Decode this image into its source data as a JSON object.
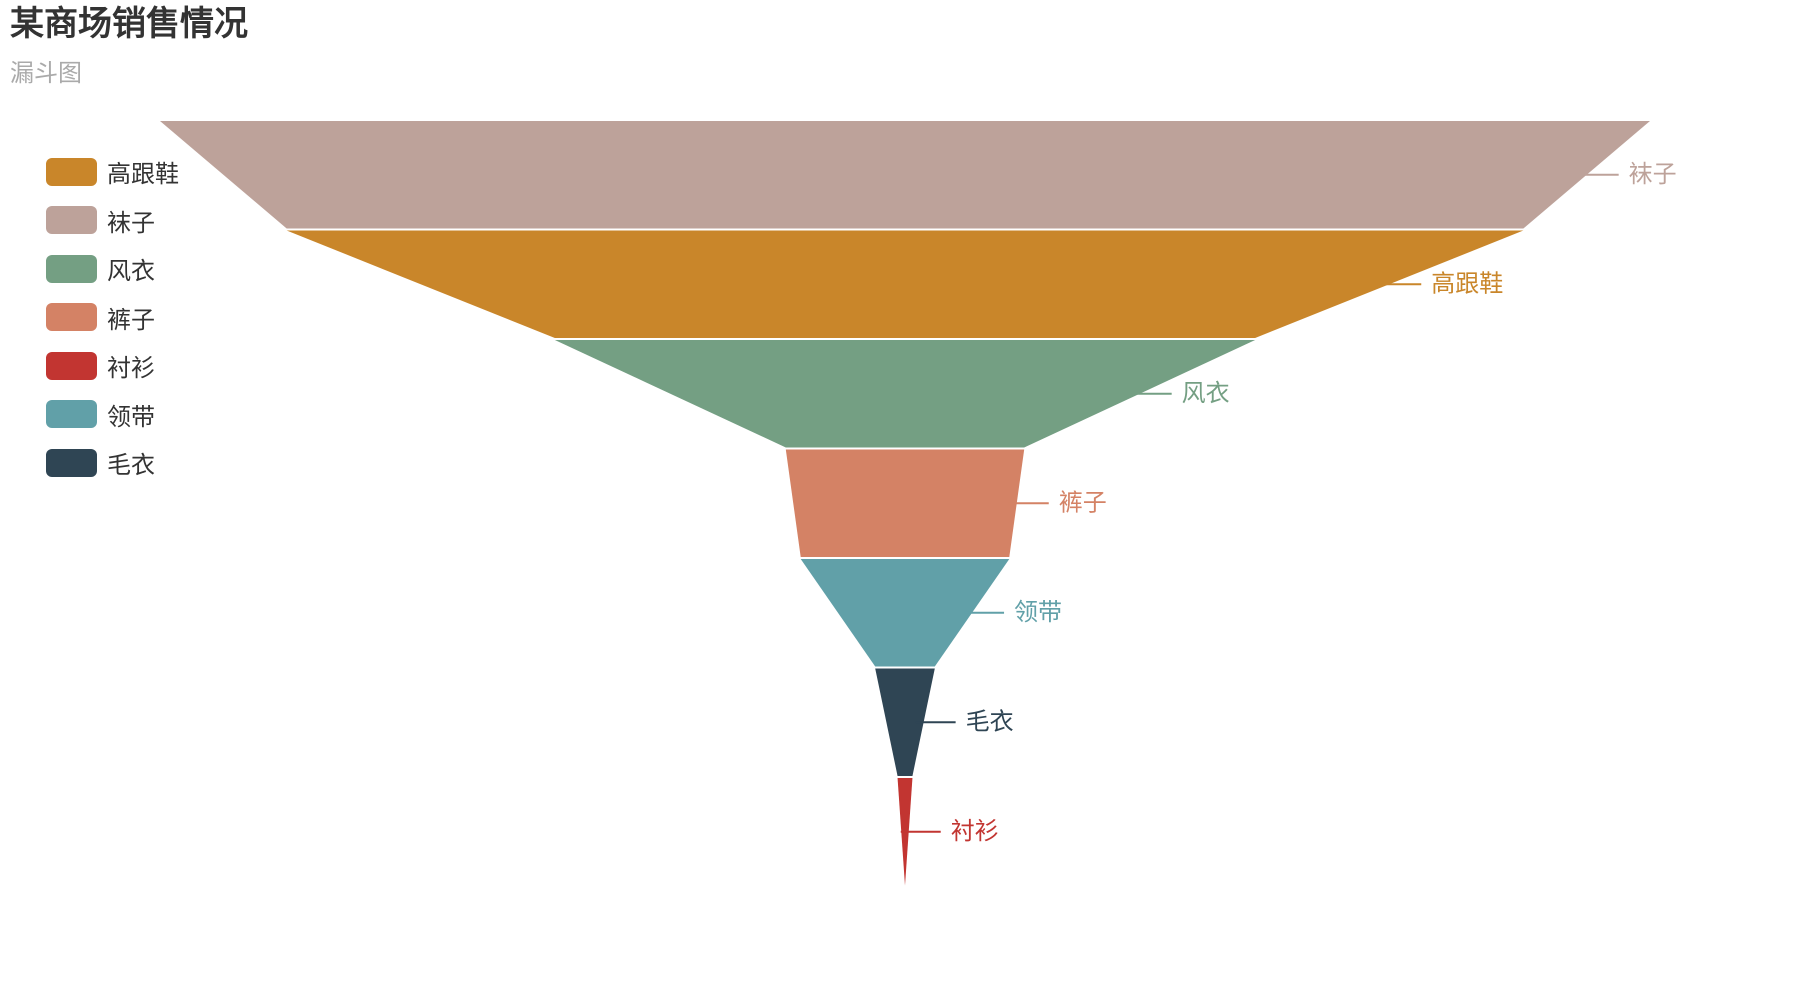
{
  "title": "某商场销售情况",
  "subtitle": "漏斗图",
  "legend": {
    "placement": "top-left",
    "items": [
      {
        "label": "高跟鞋",
        "color": "#c9862a"
      },
      {
        "label": "袜子",
        "color": "#bda29a"
      },
      {
        "label": "风衣",
        "color": "#749f83"
      },
      {
        "label": "裤子",
        "color": "#d48265"
      },
      {
        "label": "衬衫",
        "color": "#c23531"
      },
      {
        "label": "领带",
        "color": "#61a0a8"
      },
      {
        "label": "毛衣",
        "color": "#2f4554"
      }
    ]
  },
  "chart_data": {
    "type": "funnel",
    "title": "某商场销售情况",
    "subtitle": "漏斗图",
    "sort": "descending",
    "label_position": "right",
    "series": [
      {
        "name": "袜子",
        "value": 100,
        "color": "#bda29a"
      },
      {
        "name": "高跟鞋",
        "value": 83,
        "color": "#c9862a"
      },
      {
        "name": "风衣",
        "value": 47,
        "color": "#749f83"
      },
      {
        "name": "裤子",
        "value": 16,
        "color": "#d48265"
      },
      {
        "name": "领带",
        "value": 14,
        "color": "#61a0a8"
      },
      {
        "name": "毛衣",
        "value": 4,
        "color": "#2f4554"
      },
      {
        "name": "衬衫",
        "value": 1,
        "color": "#c23531"
      }
    ]
  }
}
